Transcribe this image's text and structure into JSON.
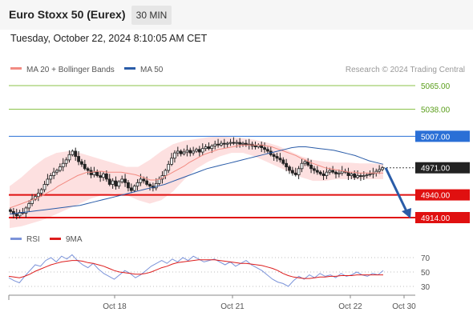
{
  "header": {
    "title": "Euro Stoxx 50 (Eurex)",
    "timeframe": "30 MIN",
    "datetime": "Tuesday, October 22, 2024 8:10:05 AM CET"
  },
  "legend": {
    "ma20": "MA 20 + Bollinger Bands",
    "ma50": "MA 50",
    "ma20_color": "#f28b82",
    "ma50_color": "#2a5ca8"
  },
  "source": "Research © 2024 Trading Central",
  "rsi_legend": {
    "rsi": "RSI",
    "ma": "9MA",
    "rsi_color": "#7b93d9",
    "ma_color": "#dd1c1c"
  },
  "chart_data": {
    "type": "candlestick",
    "ylim": [
      4895,
      5090
    ],
    "x_labels": [
      "Oct 18",
      "Oct 21",
      "Oct 22",
      "Oct 30"
    ],
    "levels": [
      {
        "value": 5065,
        "label": "5065.00",
        "kind": "resistance",
        "color": "#8bc34a"
      },
      {
        "value": 5038,
        "label": "5038.00",
        "kind": "resistance",
        "color": "#8bc34a"
      },
      {
        "value": 5007,
        "label": "5007.00",
        "kind": "pivot",
        "color": "#2a6fd6"
      },
      {
        "value": 4971,
        "label": "4971.00",
        "kind": "last",
        "color": "#222222"
      },
      {
        "value": 4940,
        "label": "4940.00",
        "kind": "support",
        "color": "#e01010"
      },
      {
        "value": 4914,
        "label": "4914.00",
        "kind": "support",
        "color": "#e01010"
      }
    ],
    "forecast": {
      "from": 4971,
      "to": 4914
    },
    "closes": [
      4921,
      4918,
      4916,
      4920,
      4919,
      4925,
      4930,
      4935,
      4938,
      4942,
      4946,
      4952,
      4958,
      4962,
      4966,
      4968,
      4972,
      4976,
      4980,
      4986,
      4990,
      4984,
      4978,
      4975,
      4970,
      4968,
      4963,
      4966,
      4962,
      4960,
      4964,
      4958,
      4952,
      4956,
      4950,
      4955,
      4958,
      4954,
      4948,
      4945,
      4950,
      4954,
      4958,
      4956,
      4952,
      4950,
      4948,
      4953,
      4958,
      4962,
      4968,
      4975,
      4982,
      4988,
      4990,
      4987,
      4989,
      4991,
      4988,
      4990,
      4992,
      4989,
      4993,
      4995,
      4993,
      4996,
      4998,
      4997,
      4999,
      4998,
      4999,
      5000,
      4999,
      5000,
      4998,
      4999,
      4997,
      4998,
      4996,
      4995,
      4997,
      4994,
      4992,
      4990,
      4986,
      4984,
      4982,
      4980,
      4976,
      4972,
      4968,
      4965,
      4963,
      4970,
      4976,
      4978,
      4974,
      4970,
      4968,
      4966,
      4964,
      4962,
      4966,
      4968,
      4966,
      4964,
      4965,
      4967,
      4966,
      4962,
      4964,
      4960,
      4962,
      4961,
      4962,
      4963,
      4964,
      4965,
      4967,
      4969,
      4971
    ],
    "ma20": [
      4925,
      4927,
      4929,
      4931,
      4933,
      4935,
      4937,
      4940,
      4943,
      4946,
      4950,
      4953,
      4956,
      4959,
      4962,
      4964,
      4966,
      4966,
      4967,
      4967,
      4966,
      4966,
      4966,
      4966,
      4965,
      4964,
      4963,
      4961,
      4959,
      4957,
      4957,
      4958,
      4961,
      4964,
      4967,
      4970,
      4973,
      4977,
      4980,
      4983,
      4986,
      4988,
      4990,
      4992,
      4993,
      4994,
      4995,
      4996,
      4997,
      4997,
      4997,
      4997,
      4997,
      4996,
      4995,
      4993,
      4991,
      4989,
      4987,
      4985,
      4982,
      4980,
      4977,
      4975,
      4973,
      4971,
      4970,
      4969,
      4968,
      4967,
      4966,
      4966,
      4965,
      4965,
      4965,
      4965,
      4965,
      4965
    ],
    "ma50": [
      4918,
      4919,
      4920,
      4921,
      4922,
      4923,
      4924,
      4925,
      4926,
      4927,
      4928,
      4930,
      4932,
      4934,
      4936,
      4938,
      4940,
      4942,
      4944,
      4946,
      4948,
      4950,
      4952,
      4955,
      4958,
      4961,
      4964,
      4967,
      4970,
      4972,
      4974,
      4976,
      4978,
      4980,
      4982,
      4984,
      4986,
      4988,
      4990,
      4992,
      4994,
      4995,
      4995,
      4994,
      4993,
      4992,
      4991,
      4989,
      4987,
      4985,
      4982,
      4979,
      4977,
      4975
    ],
    "bb_upper": [
      4950,
      4960,
      4972,
      4982,
      4988,
      4990,
      4988,
      4984,
      4980,
      4976,
      4972,
      4972,
      4980,
      4990,
      4998,
      5002,
      5004,
      5006,
      5007,
      5006,
      5005,
      5003,
      5000,
      4996,
      4990,
      4984,
      4980,
      4978,
      4977,
      4977,
      4976,
      4976,
      4975
    ],
    "bb_lower": [
      4902,
      4904,
      4908,
      4912,
      4918,
      4924,
      4930,
      4936,
      4940,
      4942,
      4940,
      4934,
      4930,
      4934,
      4944,
      4958,
      4970,
      4978,
      4984,
      4988,
      4988,
      4984,
      4978,
      4972,
      4966,
      4960,
      4956,
      4956,
      4958,
      4958,
      4958,
      4958,
      4958
    ],
    "rsi": {
      "ticks": [
        70,
        50,
        30
      ],
      "rsi": [
        42,
        38,
        35,
        44,
        52,
        60,
        58,
        66,
        70,
        64,
        72,
        68,
        74,
        66,
        60,
        56,
        62,
        54,
        48,
        44,
        40,
        46,
        52,
        48,
        42,
        46,
        52,
        58,
        62,
        66,
        62,
        68,
        64,
        70,
        66,
        72,
        68,
        64,
        66,
        68,
        64,
        60,
        64,
        58,
        62,
        66,
        60,
        56,
        52,
        46,
        40,
        36,
        34,
        30,
        38,
        44,
        40,
        46,
        42,
        48,
        44,
        46,
        42,
        48,
        44,
        46,
        50,
        46,
        44,
        48,
        46,
        52
      ],
      "ma9": [
        44,
        43,
        42,
        44,
        47,
        51,
        54,
        57,
        60,
        62,
        64,
        65,
        66,
        66,
        65,
        63,
        62,
        60,
        58,
        55,
        52,
        50,
        49,
        48,
        47,
        47,
        48,
        50,
        53,
        56,
        58,
        61,
        63,
        64,
        65,
        66,
        67,
        67,
        67,
        67,
        66,
        65,
        64,
        63,
        62,
        62,
        61,
        60,
        59,
        57,
        55,
        52,
        48,
        45,
        43,
        42,
        41,
        41,
        42,
        43,
        43,
        44,
        44,
        45,
        45,
        45,
        46,
        46,
        46,
        46,
        46,
        46
      ]
    }
  }
}
